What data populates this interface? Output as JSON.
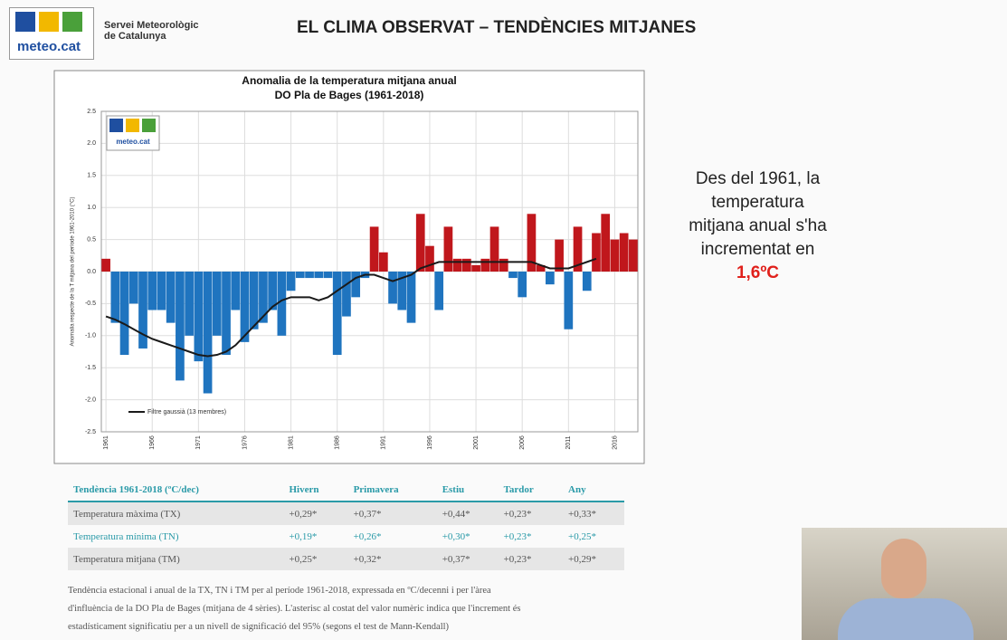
{
  "header": {
    "logo": "meteo.cat",
    "organization": [
      "Servei Meteorològic",
      "de Catalunya"
    ],
    "title": "EL CLIMA OBSERVAT – TENDÈNCIES MITJANES"
  },
  "chart_data": {
    "type": "bar",
    "title": "Anomalia de la temperatura mitjana anual",
    "subtitle": "DO Pla de Bages (1961-2018)",
    "y_label": "Anomalia respecte de la T mitjana del període 1961-2010 (°C)",
    "logo": "meteo.cat",
    "x": [
      1961,
      1962,
      1963,
      1964,
      1965,
      1966,
      1967,
      1968,
      1969,
      1970,
      1971,
      1972,
      1973,
      1974,
      1975,
      1976,
      1977,
      1978,
      1979,
      1980,
      1981,
      1982,
      1983,
      1984,
      1985,
      1986,
      1987,
      1988,
      1989,
      1990,
      1991,
      1992,
      1993,
      1994,
      1995,
      1996,
      1997,
      1998,
      1999,
      2000,
      2001,
      2002,
      2003,
      2004,
      2005,
      2006,
      2007,
      2008,
      2009,
      2010,
      2011,
      2012,
      2013,
      2014,
      2015,
      2016,
      2017,
      2018
    ],
    "series": [
      {
        "type": "bar",
        "positive_color": "#c0171c",
        "negative_color": "#1f74bf",
        "values": [
          0.2,
          -0.8,
          -1.3,
          -0.5,
          -1.2,
          -0.6,
          -0.6,
          -0.8,
          -1.7,
          -1.0,
          -1.4,
          -1.9,
          -1.0,
          -1.3,
          -0.6,
          -1.1,
          -0.9,
          -0.8,
          -0.6,
          -1.0,
          -0.3,
          -0.1,
          -0.1,
          -0.1,
          -0.1,
          -1.3,
          -0.7,
          -0.4,
          -0.1,
          0.7,
          0.3,
          -0.5,
          -0.6,
          -0.8,
          0.9,
          0.4,
          -0.6,
          0.7,
          0.2,
          0.2,
          0.1,
          0.2,
          0.7,
          0.2,
          -0.1,
          -0.4,
          0.9,
          0.1,
          -0.2,
          0.5,
          -0.9,
          0.7,
          -0.3,
          0.6,
          0.9,
          0.5,
          0.6,
          0.5
        ]
      },
      {
        "type": "line",
        "name": "Filtre gaussià (13 membres)",
        "color": "#1a1a1a",
        "values": [
          -0.7,
          -0.75,
          -0.82,
          -0.9,
          -0.98,
          -1.05,
          -1.1,
          -1.15,
          -1.2,
          -1.25,
          -1.3,
          -1.32,
          -1.3,
          -1.25,
          -1.15,
          -1.0,
          -0.85,
          -0.7,
          -0.55,
          -0.45,
          -0.4,
          -0.4,
          -0.4,
          -0.45,
          -0.4,
          -0.3,
          -0.2,
          -0.1,
          -0.05,
          -0.05,
          -0.1,
          -0.15,
          -0.1,
          -0.05,
          0.05,
          0.1,
          0.15,
          0.15,
          0.15,
          0.15,
          0.15,
          0.15,
          0.15,
          0.15,
          0.15,
          0.15,
          0.15,
          0.1,
          0.05,
          0.05,
          0.05,
          0.1,
          0.15,
          0.2,
          null,
          null,
          null,
          null
        ]
      }
    ],
    "xlim": [
      1960.5,
      2018.5
    ],
    "xticks": [
      1961,
      1966,
      1971,
      1976,
      1981,
      1986,
      1991,
      1996,
      2001,
      2006,
      2011,
      2016
    ],
    "ylim": [
      -2.5,
      2.5
    ],
    "yticks": [
      2.5,
      {
        "value": 2,
        "label": "2.0"
      },
      1.5,
      {
        "value": 1,
        "label": "1.0"
      },
      0.5,
      {
        "value": 0,
        "label": "0.0"
      },
      -0.5,
      {
        "value": -1,
        "label": "-1.0"
      },
      -1.5,
      {
        "value": -2,
        "label": "-2.0"
      },
      -2.5
    ],
    "grid": true,
    "legend": "lower left"
  },
  "table": {
    "header": [
      "Tendència 1961-2018 (ºC/dec)",
      "Hivern",
      "Primavera",
      "Estiu",
      "Tardor",
      "Any"
    ],
    "rows": [
      [
        "Temperatura màxima (TX)",
        "+0,29*",
        "+0,37*",
        "+0,44*",
        "+0,23*",
        "+0,33*"
      ],
      [
        "Temperatura mínima (TN)",
        "+0,19*",
        "+0,26*",
        "+0,30*",
        "+0,23*",
        "+0,25*"
      ],
      [
        "Temperatura mitjana (TM)",
        "+0,25*",
        "+0,32*",
        "+0,37*",
        "+0,23*",
        "+0,29*"
      ]
    ],
    "note": [
      "Tendència estacional i anual de la TX, TN i TM per al període 1961-2018, expressada en ºC/decenni i per l'àrea",
      "d'influència de la DO Pla de Bages (mitjana de 4 sèries). L'asterisc al costat del valor numèric indica que l'increment és",
      "estadísticament significatiu per a un nivell de significació del 95% (segons el test de Mann-Kendall)"
    ]
  },
  "message": {
    "lines": [
      "Des del 1961, la",
      "temperatura",
      "mitjana anual s'ha",
      "incrementat en"
    ],
    "highlight": "1,6ºC"
  }
}
